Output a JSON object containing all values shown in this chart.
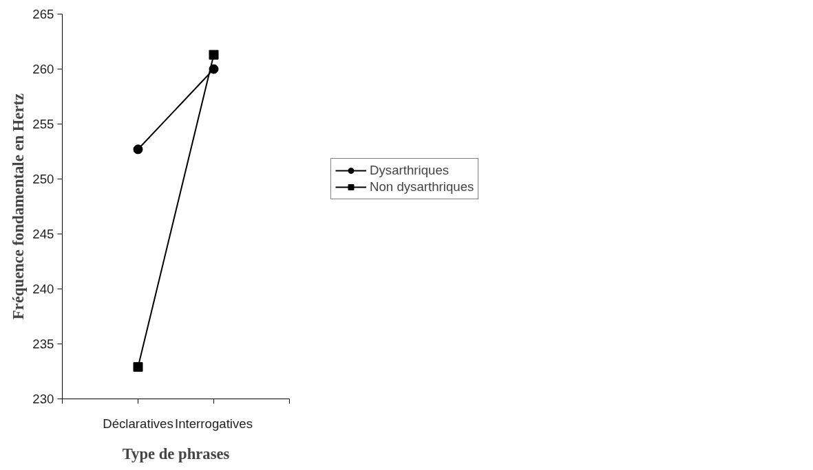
{
  "chart_data": {
    "type": "line",
    "xlabel": "Type de phrases",
    "ylabel": "Fréquence fondamentale en Hertz",
    "categories": [
      null,
      "Déclaratives",
      "Interrogatives",
      null
    ],
    "series": [
      {
        "name": "Dysarthriques",
        "color": "#000000",
        "marker": "circle",
        "values": [
          null,
          252.7,
          260.0,
          null
        ]
      },
      {
        "name": "Non dysarthriques",
        "color": "#000000",
        "marker": "square",
        "values": [
          null,
          232.9,
          261.3,
          null
        ]
      }
    ],
    "ylim": [
      230,
      265
    ],
    "yticks": [
      230,
      235,
      240,
      245,
      250,
      255,
      260,
      265
    ],
    "grid": false,
    "legend": "right",
    "line_style": "solid"
  }
}
